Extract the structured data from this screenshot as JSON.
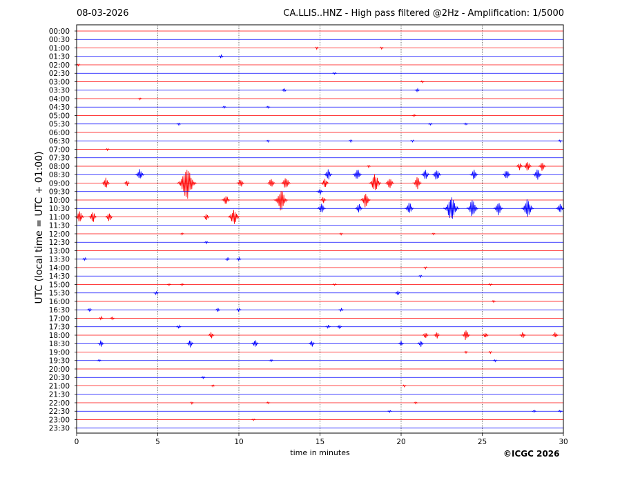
{
  "header": {
    "date": "08-03-2026",
    "title": "CA.LLIS..HNZ - High pass filtered @2Hz - Amplification: 1/5000"
  },
  "footer": {
    "copyright": "©ICGC 2026"
  },
  "chart_data": {
    "type": "line",
    "title": "CA.LLIS..HNZ - High pass filtered @2Hz - Amplification: 1/5000",
    "xlabel": "time in minutes",
    "ylabel": "UTC (local time = UTC + 01:00)",
    "xlim": [
      0,
      30
    ],
    "x_ticks": [
      0,
      5,
      10,
      15,
      20,
      25,
      30
    ],
    "grid": "vertical dotted lines at 5-minute intervals",
    "colors": {
      "even_rows": "#ff0000",
      "odd_rows": "#0000ff"
    },
    "rows": [
      {
        "label": "00:00",
        "events": []
      },
      {
        "label": "00:30",
        "events": []
      },
      {
        "label": "01:00",
        "events": [
          {
            "t": 14.8,
            "a": 2
          },
          {
            "t": 18.8,
            "a": 2
          }
        ]
      },
      {
        "label": "01:30",
        "events": [
          {
            "t": 8.9,
            "a": 3
          }
        ]
      },
      {
        "label": "02:00",
        "events": [
          {
            "t": 0.1,
            "a": 2
          }
        ]
      },
      {
        "label": "02:30",
        "events": [
          {
            "t": 15.9,
            "a": 2
          }
        ]
      },
      {
        "label": "03:00",
        "events": [
          {
            "t": 21.3,
            "a": 2
          }
        ]
      },
      {
        "label": "03:30",
        "events": [
          {
            "t": 12.8,
            "a": 3
          },
          {
            "t": 21.0,
            "a": 3
          }
        ]
      },
      {
        "label": "04:00",
        "events": [
          {
            "t": 3.9,
            "a": 2
          }
        ]
      },
      {
        "label": "04:30",
        "events": [
          {
            "t": 9.1,
            "a": 2
          },
          {
            "t": 11.8,
            "a": 2
          }
        ]
      },
      {
        "label": "05:00",
        "events": [
          {
            "t": 20.8,
            "a": 2
          }
        ]
      },
      {
        "label": "05:30",
        "events": [
          {
            "t": 6.3,
            "a": 2
          },
          {
            "t": 21.8,
            "a": 2
          },
          {
            "t": 24.0,
            "a": 2
          }
        ]
      },
      {
        "label": "06:00",
        "events": []
      },
      {
        "label": "06:30",
        "events": [
          {
            "t": 11.8,
            "a": 2
          },
          {
            "t": 16.9,
            "a": 2
          },
          {
            "t": 20.7,
            "a": 2
          },
          {
            "t": 29.8,
            "a": 2
          }
        ]
      },
      {
        "label": "07:00",
        "events": [
          {
            "t": 1.9,
            "a": 2
          }
        ]
      },
      {
        "label": "07:30",
        "events": []
      },
      {
        "label": "08:00",
        "events": [
          {
            "t": 18.0,
            "a": 2
          },
          {
            "t": 27.3,
            "a": 6
          },
          {
            "t": 27.8,
            "a": 8
          },
          {
            "t": 28.7,
            "a": 7
          }
        ]
      },
      {
        "label": "08:30",
        "events": [
          {
            "t": 3.9,
            "a": 9
          },
          {
            "t": 15.5,
            "a": 8
          },
          {
            "t": 17.3,
            "a": 9
          },
          {
            "t": 21.5,
            "a": 8
          },
          {
            "t": 22.2,
            "a": 9
          },
          {
            "t": 24.5,
            "a": 8
          },
          {
            "t": 26.5,
            "a": 8
          },
          {
            "t": 28.4,
            "a": 9
          }
        ]
      },
      {
        "label": "09:00",
        "events": [
          {
            "t": 1.8,
            "a": 8
          },
          {
            "t": 3.1,
            "a": 5
          },
          {
            "t": 6.8,
            "a": 24
          },
          {
            "t": 10.1,
            "a": 7
          },
          {
            "t": 12.0,
            "a": 8
          },
          {
            "t": 12.9,
            "a": 10
          },
          {
            "t": 15.3,
            "a": 8
          },
          {
            "t": 18.4,
            "a": 14
          },
          {
            "t": 19.3,
            "a": 9
          },
          {
            "t": 21.0,
            "a": 9
          }
        ]
      },
      {
        "label": "09:30",
        "events": [
          {
            "t": 15.0,
            "a": 5
          }
        ]
      },
      {
        "label": "10:00",
        "events": [
          {
            "t": 9.2,
            "a": 8
          },
          {
            "t": 12.6,
            "a": 16
          },
          {
            "t": 15.2,
            "a": 5
          },
          {
            "t": 17.8,
            "a": 11
          }
        ]
      },
      {
        "label": "10:30",
        "events": [
          {
            "t": 15.1,
            "a": 8
          },
          {
            "t": 17.4,
            "a": 7
          },
          {
            "t": 20.5,
            "a": 9
          },
          {
            "t": 23.1,
            "a": 19
          },
          {
            "t": 24.4,
            "a": 13
          },
          {
            "t": 26.0,
            "a": 10
          },
          {
            "t": 27.8,
            "a": 14
          },
          {
            "t": 29.8,
            "a": 8
          }
        ]
      },
      {
        "label": "11:00",
        "events": [
          {
            "t": 0.2,
            "a": 9
          },
          {
            "t": 1.0,
            "a": 8
          },
          {
            "t": 2.0,
            "a": 7
          },
          {
            "t": 8.0,
            "a": 5
          },
          {
            "t": 9.7,
            "a": 13
          }
        ]
      },
      {
        "label": "11:30",
        "events": []
      },
      {
        "label": "12:00",
        "events": [
          {
            "t": 6.5,
            "a": 2
          },
          {
            "t": 16.3,
            "a": 2
          },
          {
            "t": 22.0,
            "a": 2
          }
        ]
      },
      {
        "label": "12:30",
        "events": [
          {
            "t": 8.0,
            "a": 2
          }
        ]
      },
      {
        "label": "13:00",
        "events": []
      },
      {
        "label": "13:30",
        "events": [
          {
            "t": 0.5,
            "a": 3
          },
          {
            "t": 9.3,
            "a": 3
          },
          {
            "t": 10.0,
            "a": 3
          }
        ]
      },
      {
        "label": "14:00",
        "events": [
          {
            "t": 21.5,
            "a": 2
          }
        ]
      },
      {
        "label": "14:30",
        "events": [
          {
            "t": 21.2,
            "a": 2
          }
        ]
      },
      {
        "label": "15:00",
        "events": [
          {
            "t": 5.7,
            "a": 2
          },
          {
            "t": 6.5,
            "a": 2
          },
          {
            "t": 15.9,
            "a": 2
          },
          {
            "t": 25.5,
            "a": 2
          }
        ]
      },
      {
        "label": "15:30",
        "events": [
          {
            "t": 4.9,
            "a": 3
          },
          {
            "t": 19.8,
            "a": 4
          }
        ]
      },
      {
        "label": "16:00",
        "events": [
          {
            "t": 25.7,
            "a": 2
          }
        ]
      },
      {
        "label": "16:30",
        "events": [
          {
            "t": 0.8,
            "a": 3
          },
          {
            "t": 8.7,
            "a": 3
          },
          {
            "t": 10.0,
            "a": 3
          },
          {
            "t": 16.3,
            "a": 3
          }
        ]
      },
      {
        "label": "17:00",
        "events": [
          {
            "t": 1.5,
            "a": 3
          },
          {
            "t": 2.2,
            "a": 3
          }
        ]
      },
      {
        "label": "17:30",
        "events": [
          {
            "t": 6.3,
            "a": 3
          },
          {
            "t": 15.5,
            "a": 3
          },
          {
            "t": 16.2,
            "a": 3
          }
        ]
      },
      {
        "label": "18:00",
        "events": [
          {
            "t": 8.3,
            "a": 5
          },
          {
            "t": 21.5,
            "a": 5
          },
          {
            "t": 22.2,
            "a": 5
          },
          {
            "t": 24.0,
            "a": 8
          },
          {
            "t": 25.2,
            "a": 5
          },
          {
            "t": 27.5,
            "a": 5
          },
          {
            "t": 29.5,
            "a": 5
          }
        ]
      },
      {
        "label": "18:30",
        "events": [
          {
            "t": 1.5,
            "a": 5
          },
          {
            "t": 7.0,
            "a": 6
          },
          {
            "t": 11.0,
            "a": 6
          },
          {
            "t": 14.5,
            "a": 5
          },
          {
            "t": 20.0,
            "a": 4
          },
          {
            "t": 21.2,
            "a": 5
          }
        ]
      },
      {
        "label": "19:00",
        "events": [
          {
            "t": 24.0,
            "a": 2
          },
          {
            "t": 25.5,
            "a": 2
          }
        ]
      },
      {
        "label": "19:30",
        "events": [
          {
            "t": 1.4,
            "a": 2
          },
          {
            "t": 12.0,
            "a": 2
          },
          {
            "t": 25.8,
            "a": 2
          }
        ]
      },
      {
        "label": "20:00",
        "events": []
      },
      {
        "label": "20:30",
        "events": [
          {
            "t": 7.8,
            "a": 2
          }
        ]
      },
      {
        "label": "21:00",
        "events": [
          {
            "t": 8.4,
            "a": 2
          },
          {
            "t": 20.2,
            "a": 2
          }
        ]
      },
      {
        "label": "21:30",
        "events": []
      },
      {
        "label": "22:00",
        "events": [
          {
            "t": 7.1,
            "a": 2
          },
          {
            "t": 11.8,
            "a": 2
          },
          {
            "t": 20.9,
            "a": 2
          }
        ]
      },
      {
        "label": "22:30",
        "events": [
          {
            "t": 19.3,
            "a": 2
          },
          {
            "t": 28.2,
            "a": 2
          },
          {
            "t": 29.8,
            "a": 2
          }
        ]
      },
      {
        "label": "23:00",
        "events": [
          {
            "t": 10.9,
            "a": 2
          }
        ]
      },
      {
        "label": "23:30",
        "events": []
      }
    ]
  }
}
